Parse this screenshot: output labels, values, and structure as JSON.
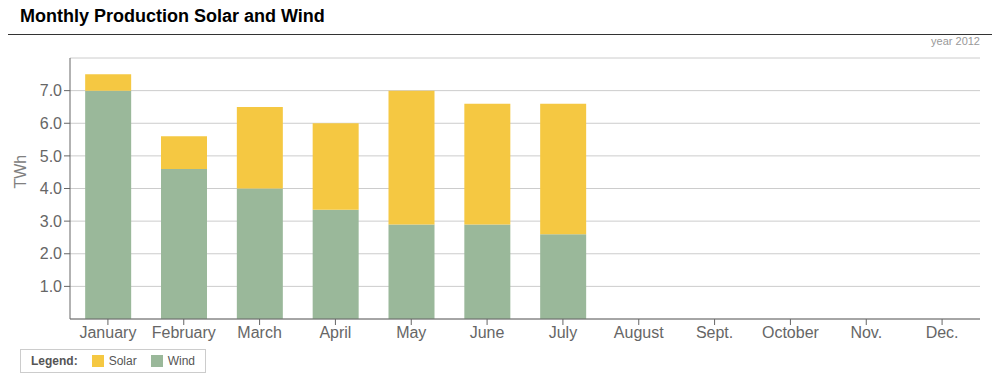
{
  "chart_data": {
    "type": "bar",
    "title": "Monthly Production Solar and Wind",
    "ylabel": "TWh",
    "annotations": [
      "year 2012"
    ],
    "legend_title": "Legend:",
    "categories": [
      "January",
      "February",
      "March",
      "April",
      "May",
      "June",
      "July",
      "August",
      "Sept.",
      "October",
      "Nov.",
      "Dec."
    ],
    "series": [
      {
        "name": "Wind",
        "color": "#9ab89a",
        "values": [
          7.0,
          4.6,
          4.0,
          3.35,
          2.9,
          2.9,
          2.6,
          0,
          0,
          0,
          0,
          0
        ]
      },
      {
        "name": "Solar",
        "color": "#f5c842",
        "values": [
          0.5,
          1.0,
          2.5,
          2.65,
          4.1,
          3.7,
          4.0,
          0,
          0,
          0,
          0,
          0
        ]
      }
    ],
    "stacked": true,
    "ylim": [
      0,
      8.0
    ],
    "yticks": [
      {
        "value": 1.0,
        "label": "1.0"
      },
      {
        "value": 2.0,
        "label": "2.0"
      },
      {
        "value": 3.0,
        "label": "3.0"
      },
      {
        "value": 4.0,
        "label": "4.0"
      },
      {
        "value": 5.0,
        "label": "5.0"
      },
      {
        "value": 6.0,
        "label": "6.0"
      },
      {
        "value": 7.0,
        "label": "7.0"
      }
    ],
    "grid": true,
    "legend": "bottom left"
  }
}
